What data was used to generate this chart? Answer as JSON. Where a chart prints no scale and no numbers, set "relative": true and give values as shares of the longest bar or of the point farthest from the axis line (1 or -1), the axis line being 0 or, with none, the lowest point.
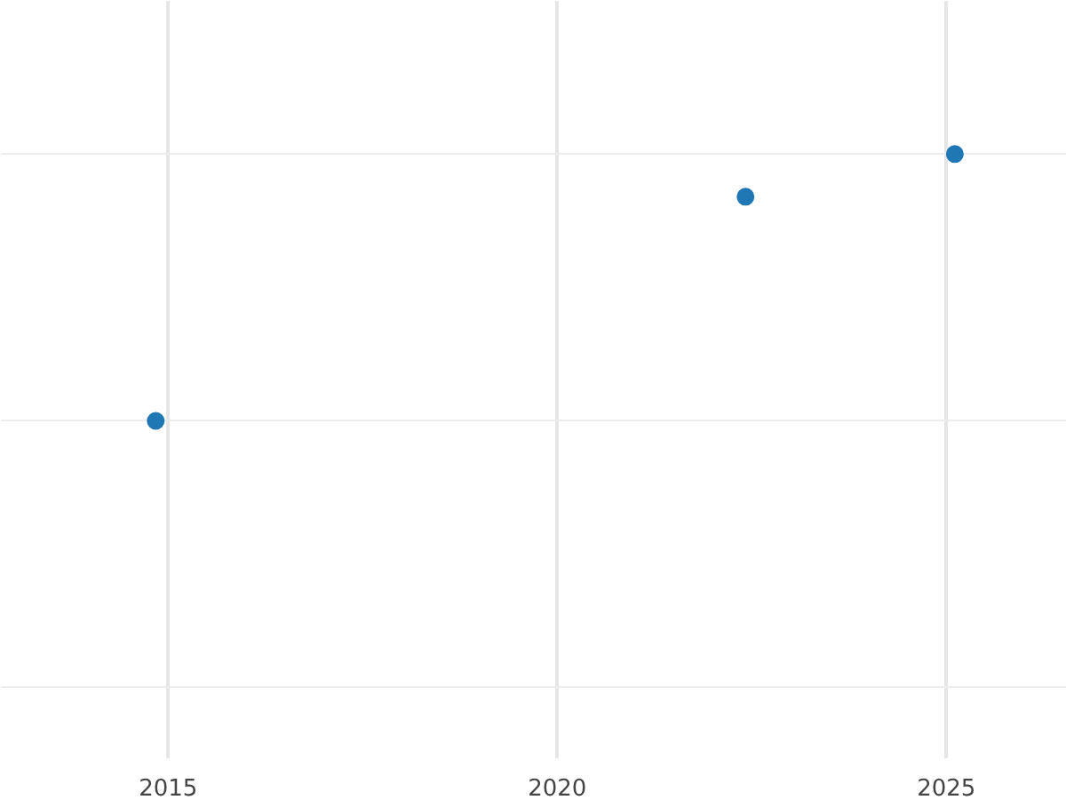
{
  "chart_data": {
    "type": "scatter",
    "relative": true,
    "x": [
      2014.84,
      2022.42,
      2025.11
    ],
    "values": [
      0,
      0.84,
      1
    ],
    "color": "#1f77b4",
    "xlim": [
      2012.85,
      2026.55
    ],
    "xticks": [
      2015,
      2020,
      2025
    ],
    "grid": true,
    "marker": "circle",
    "tick_labels": "x"
  }
}
